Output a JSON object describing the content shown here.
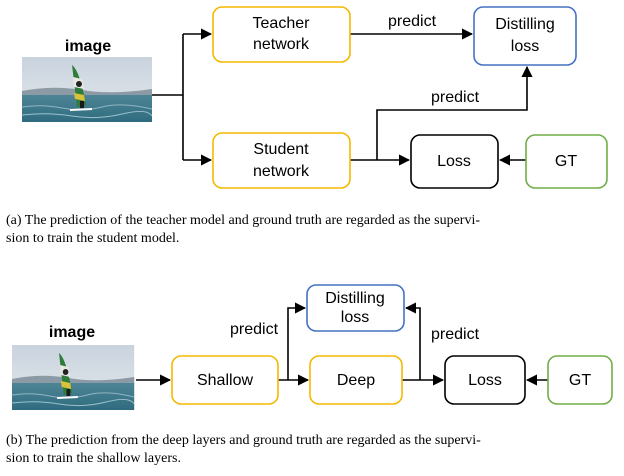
{
  "panel_a": {
    "image_label": "image",
    "teacher": [
      "Teacher",
      "network"
    ],
    "student": [
      "Student",
      "network"
    ],
    "distilling": [
      "Distilling",
      "loss"
    ],
    "loss": "Loss",
    "gt": "GT",
    "edge_teacher": "predict",
    "edge_student": "predict",
    "caption": [
      "(a)  The prediction of the teacher model and ground truth are regarded as the supervi-",
      "sion to train the student model."
    ]
  },
  "panel_b": {
    "image_label": "image",
    "shallow": "Shallow",
    "deep": "Deep",
    "distilling": [
      "Distilling",
      "loss"
    ],
    "loss": "Loss",
    "gt": "GT",
    "edge_shallow": "predict",
    "edge_deep": "predict",
    "caption": [
      "(b)  The prediction from the deep layers and ground truth are regarded as the supervi-",
      "sion to train the shallow layers."
    ]
  }
}
